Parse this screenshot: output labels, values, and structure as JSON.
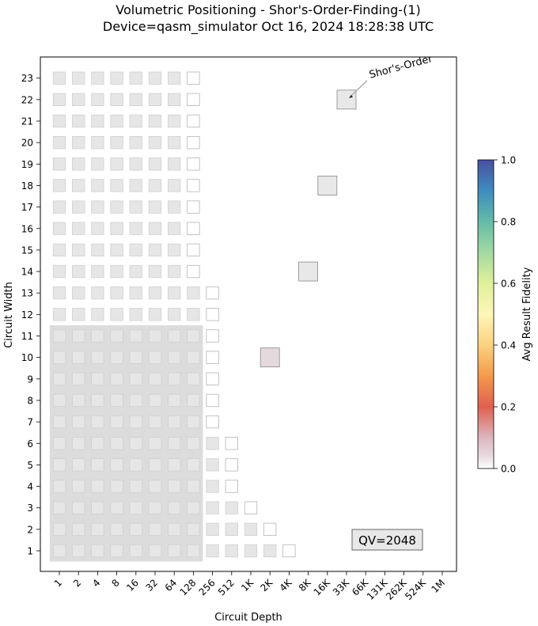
{
  "chart_data": {
    "type": "heatmap",
    "title": "Volumetric Positioning - Shor's-Order-Finding-(1)",
    "subtitle": "Device=qasm_simulator  Oct 16, 2024 18:28:38 UTC",
    "xlabel": "Circuit Depth",
    "ylabel": "Circuit Width",
    "x_tick_labels": [
      "1",
      "2",
      "4",
      "8",
      "16",
      "32",
      "64",
      "128",
      "256",
      "512",
      "1K",
      "2K",
      "4K",
      "8K",
      "16K",
      "33K",
      "66K",
      "131K",
      "262K",
      "524K",
      "1M"
    ],
    "y_tick_labels": [
      "1",
      "2",
      "3",
      "4",
      "5",
      "6",
      "7",
      "8",
      "9",
      "10",
      "11",
      "12",
      "13",
      "14",
      "15",
      "16",
      "17",
      "18",
      "19",
      "20",
      "21",
      "22",
      "23"
    ],
    "quantum_volume_label": "QV=2048",
    "quantum_volume": {
      "width": 11,
      "depth": 256
    },
    "colorbar": {
      "label": "Avg Result Fidelity",
      "range": [
        0.0,
        1.0
      ],
      "ticks": [
        "0.0",
        "0.2",
        "0.4",
        "0.6",
        "0.8",
        "1.0"
      ],
      "colormap": "Spectral"
    },
    "volumetric_background": [
      {
        "width": 1,
        "filled_depth_columns": 12,
        "outline_depth_columns": 1
      },
      {
        "width": 2,
        "filled_depth_columns": 11,
        "outline_depth_columns": 1
      },
      {
        "width": 3,
        "filled_depth_columns": 10,
        "outline_depth_columns": 1
      },
      {
        "width": 4,
        "filled_depth_columns": 9,
        "outline_depth_columns": 1
      },
      {
        "width": 5,
        "filled_depth_columns": 9,
        "outline_depth_columns": 1
      },
      {
        "width": 6,
        "filled_depth_columns": 9,
        "outline_depth_columns": 1
      },
      {
        "width": 7,
        "filled_depth_columns": 8,
        "outline_depth_columns": 1
      },
      {
        "width": 8,
        "filled_depth_columns": 8,
        "outline_depth_columns": 1
      },
      {
        "width": 9,
        "filled_depth_columns": 8,
        "outline_depth_columns": 1
      },
      {
        "width": 10,
        "filled_depth_columns": 8,
        "outline_depth_columns": 1
      },
      {
        "width": 11,
        "filled_depth_columns": 8,
        "outline_depth_columns": 1
      },
      {
        "width": 12,
        "filled_depth_columns": 8,
        "outline_depth_columns": 1
      },
      {
        "width": 13,
        "filled_depth_columns": 8,
        "outline_depth_columns": 1
      },
      {
        "width": 14,
        "filled_depth_columns": 7,
        "outline_depth_columns": 1
      },
      {
        "width": 15,
        "filled_depth_columns": 7,
        "outline_depth_columns": 1
      },
      {
        "width": 16,
        "filled_depth_columns": 7,
        "outline_depth_columns": 1
      },
      {
        "width": 17,
        "filled_depth_columns": 7,
        "outline_depth_columns": 1
      },
      {
        "width": 18,
        "filled_depth_columns": 7,
        "outline_depth_columns": 1
      },
      {
        "width": 19,
        "filled_depth_columns": 7,
        "outline_depth_columns": 1
      },
      {
        "width": 20,
        "filled_depth_columns": 7,
        "outline_depth_columns": 1
      },
      {
        "width": 21,
        "filled_depth_columns": 7,
        "outline_depth_columns": 1
      },
      {
        "width": 22,
        "filled_depth_columns": 7,
        "outline_depth_columns": 1
      },
      {
        "width": 23,
        "filled_depth_columns": 7,
        "outline_depth_columns": 1
      }
    ],
    "data_points": [
      {
        "width": 10,
        "depth": "2K",
        "fidelity": 0.03
      },
      {
        "width": 14,
        "depth": "8K",
        "fidelity": 0.0
      },
      {
        "width": 18,
        "depth": "16K",
        "fidelity": 0.0
      },
      {
        "width": 22,
        "depth": "33K",
        "fidelity": 0.0
      }
    ],
    "annotation": {
      "text": "Shor's-Order",
      "points_to": {
        "width": 22,
        "depth": "33K"
      }
    },
    "grid": false,
    "legend": "colorbar-right"
  }
}
